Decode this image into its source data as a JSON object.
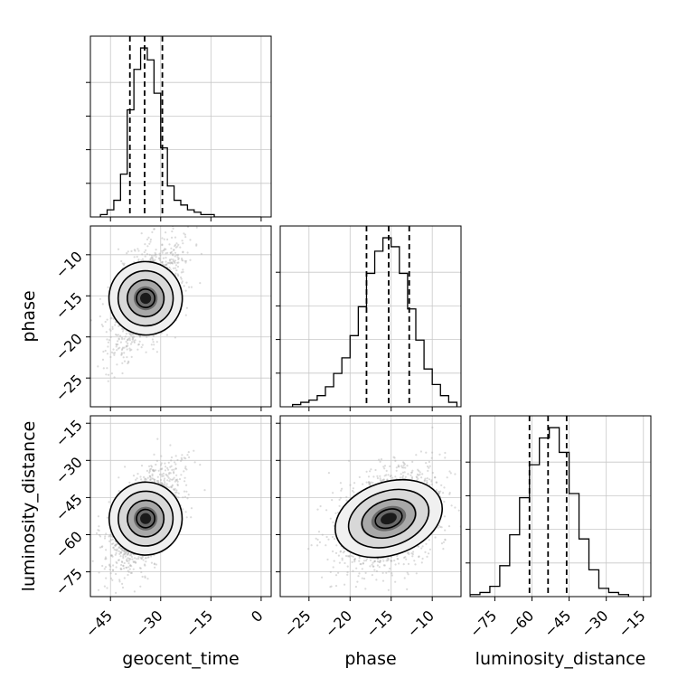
{
  "chart_data": {
    "type": "corner",
    "parameters": [
      "geocent_time",
      "phase",
      "luminosity_distance"
    ],
    "axis_labels": [
      "geocent_time",
      "phase",
      "luminosity_distance"
    ],
    "ranges": {
      "geocent_time": [
        -51,
        3
      ],
      "phase": [
        -28.5,
        -6.5
      ],
      "luminosity_distance": [
        -85,
        -12
      ]
    },
    "ticks": {
      "geocent_time": [
        -45,
        -30,
        -15,
        0
      ],
      "phase": [
        -25,
        -20,
        -15,
        -10
      ],
      "luminosity_distance": [
        -75,
        -60,
        -45,
        -30,
        -15
      ]
    },
    "grid": true,
    "quantile_lines": {
      "geocent_time": [
        -39.2,
        -34.8,
        -29.5
      ],
      "phase": [
        -18.0,
        -15.3,
        -12.8
      ],
      "luminosity_distance": [
        -61.0,
        -53.5,
        -46.0
      ]
    },
    "histograms": {
      "geocent_time": {
        "bin_edges": [
          -48,
          -46,
          -44,
          -42,
          -40,
          -38,
          -36,
          -34,
          -32,
          -30,
          -28,
          -26,
          -24,
          -22,
          -20,
          -18,
          -16,
          -14,
          -12,
          -10,
          -8,
          -6,
          -4,
          -2,
          0
        ],
        "counts": [
          1,
          3,
          7,
          18,
          45,
          62,
          71,
          66,
          52,
          29,
          13,
          7,
          5,
          3,
          2,
          1,
          1,
          0,
          0,
          0,
          0,
          0,
          0,
          0
        ]
      },
      "phase": {
        "bin_edges": [
          -27,
          -26,
          -25,
          -24,
          -23,
          -22,
          -21,
          -20,
          -19,
          -18,
          -17,
          -16,
          -15,
          -14,
          -13,
          -12,
          -11,
          -10,
          -9,
          -8,
          -7
        ],
        "counts": [
          1,
          2,
          3,
          5,
          9,
          15,
          22,
          32,
          45,
          60,
          70,
          76,
          72,
          60,
          44,
          30,
          17,
          10,
          5,
          2
        ]
      },
      "luminosity_distance": {
        "bin_edges": [
          -85,
          -81,
          -77,
          -73,
          -69,
          -65,
          -61,
          -57,
          -53,
          -49,
          -45,
          -41,
          -37,
          -33,
          -29,
          -25,
          -21
        ],
        "counts": [
          1,
          2,
          5,
          15,
          30,
          48,
          64,
          77,
          82,
          70,
          50,
          28,
          13,
          4,
          2,
          1
        ]
      }
    },
    "scatter_2d": [
      {
        "x": "geocent_time",
        "y": "phase",
        "mean": [
          -34.5,
          -15.3
        ],
        "sd": [
          5.2,
          3.2
        ],
        "corr": 0.55
      },
      {
        "x": "geocent_time",
        "y": "luminosity_distance",
        "mean": [
          -34.5,
          -53.5
        ],
        "sd": [
          5.2,
          10.5
        ],
        "corr": 0.62
      },
      {
        "x": "phase",
        "y": "luminosity_distance",
        "mean": [
          -15.3,
          -53.5
        ],
        "sd": [
          3.2,
          10.5
        ],
        "corr": 0.35
      }
    ],
    "contour_levels": [
      0.5,
      1.0,
      1.5,
      2.0
    ]
  }
}
